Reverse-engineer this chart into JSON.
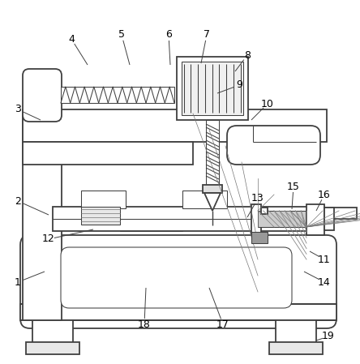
{
  "bg": "#ffffff",
  "lc": "#404040",
  "lw": 1.3,
  "tlw": 0.75,
  "label_font": 9,
  "labels": {
    "1": [
      22,
      348,
      55,
      335
    ],
    "2": [
      22,
      248,
      60,
      265
    ],
    "3": [
      22,
      135,
      50,
      148
    ],
    "4": [
      88,
      48,
      108,
      80
    ],
    "5": [
      150,
      43,
      160,
      80
    ],
    "6": [
      208,
      43,
      210,
      80
    ],
    "7": [
      255,
      43,
      248,
      78
    ],
    "8": [
      305,
      68,
      290,
      88
    ],
    "9": [
      295,
      105,
      268,
      115
    ],
    "10": [
      330,
      128,
      310,
      148
    ],
    "11": [
      400,
      320,
      382,
      310
    ],
    "12": [
      60,
      295,
      115,
      283
    ],
    "13": [
      318,
      245,
      305,
      268
    ],
    "14": [
      400,
      348,
      375,
      335
    ],
    "15": [
      362,
      230,
      360,
      258
    ],
    "16": [
      400,
      240,
      390,
      260
    ],
    "17": [
      275,
      400,
      258,
      355
    ],
    "18": [
      178,
      400,
      180,
      355
    ],
    "19": [
      405,
      415,
      390,
      420
    ]
  }
}
